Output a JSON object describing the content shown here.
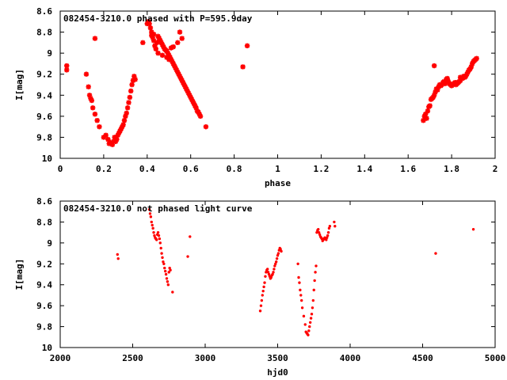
{
  "chart_data": [
    {
      "type": "scatter",
      "title": "082454-3210.0 phased with P=595.9day",
      "xlabel": "phase",
      "ylabel": "I[mag]",
      "xlim": [
        0,
        2
      ],
      "ylim": [
        8.6,
        10
      ],
      "y_inverted": true,
      "xticks": [
        "0",
        "0.2",
        "0.4",
        "0.6",
        "0.8",
        "1",
        "1.2",
        "1.4",
        "1.6",
        "1.8",
        "2"
      ],
      "yticks": [
        "8.6",
        "8.8",
        "9",
        "9.2",
        "9.4",
        "9.6",
        "9.8",
        "10"
      ],
      "marker": "star",
      "color": "#ff0000",
      "grid": false,
      "series": [
        {
          "x": [
            0.03,
            0.03,
            0.12,
            0.13,
            0.135,
            0.14,
            0.145,
            0.15,
            0.16,
            0.17,
            0.18,
            0.2,
            0.21,
            0.22,
            0.225,
            0.23,
            0.24,
            0.245,
            0.25,
            0.255,
            0.26,
            0.265,
            0.27,
            0.275,
            0.28,
            0.285,
            0.29,
            0.295,
            0.3,
            0.305,
            0.31,
            0.315,
            0.32,
            0.325,
            0.33,
            0.335,
            0.34,
            0.345,
            0.16,
            0.38,
            0.4,
            0.405,
            0.41,
            0.415,
            0.42,
            0.425,
            0.43,
            0.435,
            0.44,
            0.445,
            0.45,
            0.455,
            0.46,
            0.465,
            0.47,
            0.475,
            0.48,
            0.485,
            0.49,
            0.495,
            0.5,
            0.505,
            0.51,
            0.515,
            0.52,
            0.525,
            0.53,
            0.535,
            0.54,
            0.545,
            0.55,
            0.555,
            0.56,
            0.565,
            0.57,
            0.575,
            0.58,
            0.585,
            0.59,
            0.595,
            0.6,
            0.605,
            0.61,
            0.615,
            0.62,
            0.625,
            0.63,
            0.635,
            0.64,
            0.645,
            0.67,
            0.45,
            0.47,
            0.49,
            0.5,
            0.51,
            0.52,
            0.54,
            0.55,
            0.56,
            0.42,
            0.43,
            0.84,
            0.86,
            1.67,
            1.675,
            1.68,
            1.685,
            1.69,
            1.695,
            1.7,
            1.705,
            1.71,
            1.715,
            1.72,
            1.725,
            1.73,
            1.735,
            1.74,
            1.745,
            1.75,
            1.755,
            1.76,
            1.765,
            1.77,
            1.775,
            1.78,
            1.785,
            1.79,
            1.795,
            1.8,
            1.805,
            1.81,
            1.815,
            1.82,
            1.825,
            1.83,
            1.835,
            1.84,
            1.845,
            1.85,
            1.855,
            1.86,
            1.865,
            1.87,
            1.875,
            1.88,
            1.885,
            1.89,
            1.895,
            1.9,
            1.905,
            1.91,
            1.915,
            1.72,
            1.78,
            1.82,
            1.84
          ],
          "y": [
            9.12,
            9.16,
            9.2,
            9.32,
            9.4,
            9.43,
            9.45,
            9.52,
            9.58,
            9.64,
            9.7,
            9.8,
            9.78,
            9.82,
            9.86,
            9.85,
            9.87,
            9.84,
            9.8,
            9.84,
            9.82,
            9.78,
            9.76,
            9.74,
            9.72,
            9.7,
            9.68,
            9.64,
            9.6,
            9.57,
            9.52,
            9.47,
            9.42,
            9.36,
            9.3,
            9.26,
            9.22,
            9.25,
            8.86,
            8.9,
            8.72,
            8.7,
            8.72,
            8.76,
            8.8,
            8.85,
            8.88,
            8.93,
            8.96,
            8.9,
            8.84,
            8.86,
            8.88,
            8.9,
            8.92,
            8.94,
            8.96,
            8.97,
            8.98,
            9.0,
            9.02,
            9.04,
            9.06,
            9.08,
            9.1,
            9.12,
            9.14,
            9.16,
            9.18,
            9.2,
            9.22,
            9.24,
            9.26,
            9.28,
            9.3,
            9.32,
            9.34,
            9.36,
            9.38,
            9.4,
            9.42,
            9.44,
            9.46,
            9.48,
            9.5,
            9.52,
            9.55,
            9.56,
            9.58,
            9.6,
            9.7,
            9.0,
            9.02,
            9.04,
            9.06,
            8.95,
            8.94,
            8.9,
            8.8,
            8.86,
            8.83,
            8.82,
            9.13,
            8.93,
            9.64,
            9.6,
            9.58,
            9.62,
            9.55,
            9.51,
            9.5,
            9.44,
            9.43,
            9.42,
            9.4,
            9.37,
            9.34,
            9.35,
            9.32,
            9.3,
            9.31,
            9.3,
            9.28,
            9.27,
            9.29,
            9.25,
            9.24,
            9.27,
            9.29,
            9.3,
            9.31,
            9.3,
            9.29,
            9.28,
            9.3,
            9.29,
            9.28,
            9.27,
            9.26,
            9.24,
            9.24,
            9.22,
            9.23,
            9.22,
            9.2,
            9.18,
            9.16,
            9.15,
            9.13,
            9.1,
            9.08,
            9.07,
            9.06,
            9.05,
            9.12,
            9.25,
            9.28,
            9.23
          ]
        }
      ]
    },
    {
      "type": "scatter",
      "title": "082454-3210.0 not phased light curve",
      "xlabel": "hjd0",
      "ylabel": "I[mag]",
      "xlim": [
        2000,
        5000
      ],
      "ylim": [
        8.6,
        10
      ],
      "y_inverted": true,
      "xticks": [
        "2000",
        "2500",
        "3000",
        "3500",
        "4000",
        "4500",
        "5000"
      ],
      "yticks": [
        "8.6",
        "8.8",
        "9",
        "9.2",
        "9.4",
        "9.6",
        "9.8",
        "10"
      ],
      "marker": "dot",
      "color": "#ff0000",
      "grid": false,
      "series": [
        {
          "x": [
            2395,
            2400,
            2615,
            2620,
            2625,
            2630,
            2635,
            2640,
            2645,
            2650,
            2655,
            2660,
            2665,
            2670,
            2675,
            2680,
            2685,
            2690,
            2695,
            2700,
            2705,
            2710,
            2715,
            2720,
            2725,
            2730,
            2735,
            2740,
            2745,
            2750,
            2755,
            2760,
            2775,
            2880,
            2895,
            3380,
            3385,
            3390,
            3395,
            3400,
            3405,
            3410,
            3415,
            3420,
            3425,
            3430,
            3435,
            3440,
            3445,
            3450,
            3455,
            3460,
            3465,
            3470,
            3475,
            3480,
            3485,
            3490,
            3495,
            3500,
            3505,
            3510,
            3515,
            3520,
            3525,
            3640,
            3645,
            3650,
            3655,
            3660,
            3665,
            3670,
            3680,
            3690,
            3695,
            3700,
            3705,
            3710,
            3715,
            3720,
            3725,
            3730,
            3735,
            3740,
            3745,
            3750,
            3755,
            3760,
            3765,
            3770,
            3775,
            3780,
            3785,
            3790,
            3795,
            3800,
            3805,
            3810,
            3815,
            3820,
            3825,
            3830,
            3835,
            3840,
            3845,
            3850,
            3855,
            3860,
            3890,
            3895,
            4590,
            4850
          ],
          "y": [
            9.11,
            9.15,
            8.68,
            8.72,
            8.75,
            8.8,
            8.83,
            8.86,
            8.9,
            8.93,
            8.95,
            8.96,
            8.97,
            8.92,
            8.9,
            8.93,
            8.96,
            9.0,
            9.05,
            9.1,
            9.14,
            9.18,
            9.2,
            9.24,
            9.27,
            9.3,
            9.34,
            9.37,
            9.4,
            9.28,
            9.24,
            9.26,
            9.47,
            9.13,
            8.94,
            9.65,
            9.6,
            9.55,
            9.5,
            9.46,
            9.42,
            9.38,
            9.32,
            9.28,
            9.26,
            9.25,
            9.28,
            9.3,
            9.32,
            9.34,
            9.33,
            9.31,
            9.3,
            9.28,
            9.25,
            9.22,
            9.2,
            9.18,
            9.15,
            9.12,
            9.1,
            9.07,
            9.05,
            9.06,
            9.08,
            9.2,
            9.33,
            9.38,
            9.45,
            9.5,
            9.55,
            9.62,
            9.7,
            9.78,
            9.85,
            9.86,
            9.87,
            9.88,
            9.84,
            9.8,
            9.76,
            9.72,
            9.68,
            9.62,
            9.55,
            9.45,
            9.36,
            9.28,
            9.22,
            8.9,
            8.88,
            8.87,
            8.9,
            8.92,
            8.94,
            8.95,
            8.96,
            8.98,
            8.97,
            8.96,
            8.95,
            8.96,
            8.97,
            8.95,
            8.93,
            8.9,
            8.86,
            8.84,
            8.8,
            8.84,
            9.1,
            8.87
          ]
        }
      ]
    }
  ]
}
